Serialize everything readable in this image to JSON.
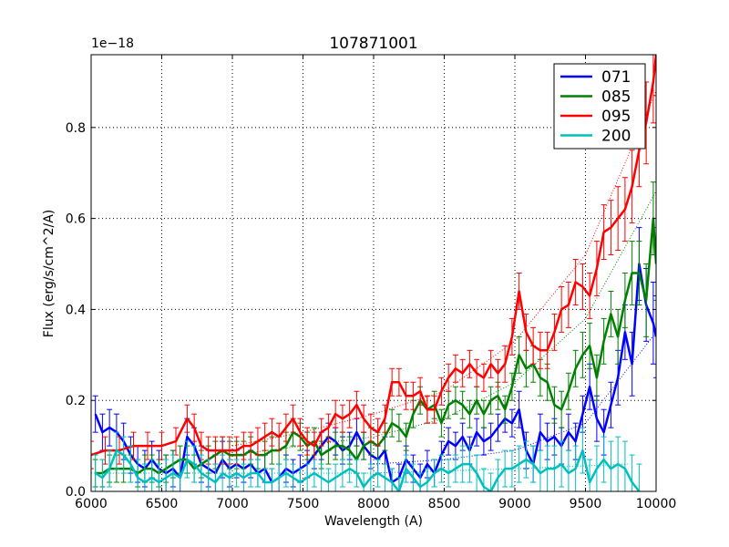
{
  "chart_data": {
    "type": "line",
    "title": "107871001",
    "xlabel": "Wavelength (A)",
    "ylabel": "Flux (erg/s/cm^2/A)",
    "y_offset_label": "1e−18",
    "xlim": [
      6000,
      10000
    ],
    "ylim": [
      0,
      0.96
    ],
    "x_ticks": [
      6000,
      6500,
      7000,
      7500,
      8000,
      8500,
      9000,
      9500,
      10000
    ],
    "x_tick_labels": [
      "6000",
      "6500",
      "7000",
      "7500",
      "8000",
      "8500",
      "9000",
      "9500",
      "10000"
    ],
    "y_ticks": [
      0.0,
      0.2,
      0.4,
      0.6,
      0.8
    ],
    "y_tick_labels": [
      "0.0",
      "0.2",
      "0.4",
      "0.6",
      "0.8"
    ],
    "grid": true,
    "legend_position": "top-right",
    "series": [
      {
        "name": "071",
        "color": "#0000ff",
        "x": [
          6030,
          6080,
          6130,
          6180,
          6230,
          6280,
          6330,
          6380,
          6430,
          6480,
          6530,
          6580,
          6630,
          6680,
          6730,
          6780,
          6830,
          6880,
          6930,
          6980,
          7030,
          7080,
          7130,
          7180,
          7230,
          7280,
          7330,
          7380,
          7430,
          7480,
          7530,
          7580,
          7630,
          7680,
          7730,
          7780,
          7830,
          7880,
          7930,
          7980,
          8030,
          8080,
          8130,
          8180,
          8230,
          8280,
          8330,
          8380,
          8430,
          8480,
          8530,
          8580,
          8630,
          8680,
          8730,
          8780,
          8830,
          8880,
          8930,
          8980,
          9030,
          9080,
          9130,
          9180,
          9230,
          9280,
          9330,
          9380,
          9430,
          9480,
          9530,
          9580,
          9630,
          9680,
          9730,
          9780,
          9830,
          9880,
          9930,
          9980,
          10000
        ],
        "values": [
          0.17,
          0.13,
          0.14,
          0.13,
          0.11,
          0.08,
          0.06,
          0.05,
          0.07,
          0.05,
          0.04,
          0.05,
          0.03,
          0.12,
          0.1,
          0.06,
          0.05,
          0.04,
          0.07,
          0.05,
          0.06,
          0.05,
          0.06,
          0.04,
          0.05,
          0.02,
          0.03,
          0.05,
          0.04,
          0.05,
          0.06,
          0.08,
          0.1,
          0.12,
          0.11,
          0.09,
          0.1,
          0.13,
          0.1,
          0.08,
          0.07,
          0.09,
          0.02,
          0.03,
          0.07,
          0.05,
          0.03,
          0.06,
          0.04,
          0.08,
          0.11,
          0.1,
          0.12,
          0.09,
          0.13,
          0.11,
          0.12,
          0.14,
          0.16,
          0.15,
          0.18,
          0.09,
          0.06,
          0.13,
          0.11,
          0.12,
          0.1,
          0.13,
          0.11,
          0.17,
          0.23,
          0.16,
          0.13,
          0.19,
          0.25,
          0.35,
          0.28,
          0.5,
          0.41,
          0.37,
          0.34
        ],
        "errors": [
          0.04,
          0.04,
          0.04,
          0.04,
          0.04,
          0.04,
          0.04,
          0.04,
          0.04,
          0.04,
          0.04,
          0.04,
          0.04,
          0.04,
          0.04,
          0.04,
          0.04,
          0.04,
          0.04,
          0.04,
          0.03,
          0.03,
          0.03,
          0.03,
          0.03,
          0.03,
          0.03,
          0.03,
          0.03,
          0.03,
          0.03,
          0.03,
          0.03,
          0.03,
          0.03,
          0.03,
          0.03,
          0.03,
          0.03,
          0.03,
          0.03,
          0.03,
          0.03,
          0.03,
          0.03,
          0.03,
          0.03,
          0.03,
          0.03,
          0.03,
          0.03,
          0.03,
          0.03,
          0.03,
          0.03,
          0.03,
          0.03,
          0.03,
          0.03,
          0.03,
          0.04,
          0.04,
          0.04,
          0.04,
          0.04,
          0.04,
          0.04,
          0.04,
          0.04,
          0.04,
          0.05,
          0.05,
          0.05,
          0.05,
          0.06,
          0.06,
          0.07,
          0.08,
          0.08,
          0.09,
          0.09
        ]
      },
      {
        "name": "085",
        "color": "#008000",
        "x": [
          6030,
          6080,
          6130,
          6180,
          6230,
          6280,
          6330,
          6380,
          6430,
          6480,
          6530,
          6580,
          6630,
          6680,
          6730,
          6780,
          6830,
          6880,
          6930,
          6980,
          7030,
          7080,
          7130,
          7180,
          7230,
          7280,
          7330,
          7380,
          7430,
          7480,
          7530,
          7580,
          7630,
          7680,
          7730,
          7780,
          7830,
          7880,
          7930,
          7980,
          8030,
          8080,
          8130,
          8180,
          8230,
          8280,
          8330,
          8380,
          8430,
          8480,
          8530,
          8580,
          8630,
          8680,
          8730,
          8780,
          8830,
          8880,
          8930,
          8980,
          9030,
          9080,
          9130,
          9180,
          9230,
          9280,
          9330,
          9380,
          9430,
          9480,
          9530,
          9580,
          9630,
          9680,
          9730,
          9780,
          9830,
          9880,
          9930,
          9980,
          10000
        ],
        "values": [
          0.04,
          0.04,
          0.05,
          0.05,
          0.05,
          0.05,
          0.04,
          0.05,
          0.05,
          0.04,
          0.05,
          0.06,
          0.07,
          0.07,
          0.05,
          0.06,
          0.07,
          0.08,
          0.09,
          0.08,
          0.08,
          0.08,
          0.09,
          0.08,
          0.08,
          0.09,
          0.09,
          0.1,
          0.13,
          0.12,
          0.1,
          0.11,
          0.08,
          0.09,
          0.1,
          0.1,
          0.09,
          0.07,
          0.1,
          0.11,
          0.1,
          0.12,
          0.15,
          0.14,
          0.12,
          0.17,
          0.2,
          0.18,
          0.19,
          0.15,
          0.19,
          0.2,
          0.19,
          0.17,
          0.2,
          0.17,
          0.2,
          0.21,
          0.18,
          0.23,
          0.3,
          0.27,
          0.28,
          0.25,
          0.24,
          0.19,
          0.18,
          0.22,
          0.27,
          0.3,
          0.32,
          0.25,
          0.33,
          0.39,
          0.34,
          0.42,
          0.48,
          0.48,
          0.42,
          0.6,
          0.5
        ],
        "errors": [
          0.03,
          0.03,
          0.03,
          0.03,
          0.03,
          0.03,
          0.03,
          0.03,
          0.03,
          0.03,
          0.03,
          0.03,
          0.03,
          0.03,
          0.03,
          0.03,
          0.03,
          0.03,
          0.03,
          0.03,
          0.03,
          0.03,
          0.03,
          0.03,
          0.03,
          0.03,
          0.03,
          0.03,
          0.03,
          0.03,
          0.03,
          0.03,
          0.03,
          0.03,
          0.03,
          0.03,
          0.03,
          0.03,
          0.03,
          0.03,
          0.03,
          0.03,
          0.03,
          0.03,
          0.03,
          0.03,
          0.03,
          0.03,
          0.03,
          0.03,
          0.03,
          0.03,
          0.03,
          0.03,
          0.03,
          0.03,
          0.03,
          0.03,
          0.03,
          0.03,
          0.04,
          0.04,
          0.04,
          0.04,
          0.04,
          0.04,
          0.04,
          0.04,
          0.04,
          0.05,
          0.05,
          0.05,
          0.05,
          0.05,
          0.06,
          0.06,
          0.07,
          0.07,
          0.08,
          0.08,
          0.08
        ]
      },
      {
        "name": "095",
        "color": "#ff0000",
        "x": [
          6000,
          6100,
          6200,
          6300,
          6400,
          6500,
          6600,
          6680,
          6730,
          6780,
          6830,
          6880,
          6930,
          6980,
          7030,
          7080,
          7130,
          7180,
          7230,
          7280,
          7330,
          7380,
          7430,
          7480,
          7530,
          7580,
          7630,
          7680,
          7730,
          7780,
          7830,
          7880,
          7930,
          7980,
          8030,
          8080,
          8130,
          8180,
          8230,
          8280,
          8330,
          8380,
          8430,
          8480,
          8530,
          8580,
          8630,
          8680,
          8730,
          8780,
          8830,
          8880,
          8930,
          8980,
          9030,
          9080,
          9130,
          9180,
          9230,
          9280,
          9330,
          9380,
          9430,
          9480,
          9530,
          9580,
          9630,
          9680,
          9730,
          9780,
          9830,
          9880,
          9930,
          9980,
          10000
        ],
        "values": [
          0.08,
          0.09,
          0.09,
          0.1,
          0.1,
          0.1,
          0.11,
          0.16,
          0.14,
          0.1,
          0.09,
          0.09,
          0.09,
          0.09,
          0.09,
          0.1,
          0.1,
          0.11,
          0.12,
          0.13,
          0.12,
          0.14,
          0.16,
          0.13,
          0.11,
          0.1,
          0.13,
          0.14,
          0.17,
          0.16,
          0.17,
          0.19,
          0.16,
          0.14,
          0.13,
          0.16,
          0.24,
          0.24,
          0.21,
          0.21,
          0.22,
          0.18,
          0.18,
          0.22,
          0.25,
          0.27,
          0.26,
          0.28,
          0.26,
          0.25,
          0.28,
          0.26,
          0.28,
          0.34,
          0.44,
          0.35,
          0.32,
          0.31,
          0.31,
          0.35,
          0.4,
          0.41,
          0.46,
          0.45,
          0.43,
          0.49,
          0.57,
          0.58,
          0.6,
          0.62,
          0.67,
          0.75,
          0.81,
          0.9,
          0.96
        ],
        "errors": [
          0.03,
          0.03,
          0.03,
          0.03,
          0.03,
          0.03,
          0.03,
          0.03,
          0.03,
          0.03,
          0.03,
          0.03,
          0.03,
          0.03,
          0.03,
          0.03,
          0.03,
          0.03,
          0.03,
          0.03,
          0.03,
          0.03,
          0.03,
          0.03,
          0.03,
          0.03,
          0.03,
          0.03,
          0.03,
          0.03,
          0.03,
          0.03,
          0.03,
          0.03,
          0.03,
          0.03,
          0.03,
          0.03,
          0.03,
          0.03,
          0.03,
          0.03,
          0.03,
          0.03,
          0.03,
          0.03,
          0.03,
          0.03,
          0.03,
          0.03,
          0.03,
          0.03,
          0.04,
          0.04,
          0.04,
          0.04,
          0.04,
          0.04,
          0.04,
          0.04,
          0.05,
          0.05,
          0.05,
          0.05,
          0.05,
          0.06,
          0.06,
          0.06,
          0.07,
          0.07,
          0.08,
          0.08,
          0.09,
          0.09,
          0.09
        ]
      },
      {
        "name": "200",
        "color": "#00bfbf",
        "x": [
          6030,
          6080,
          6130,
          6180,
          6230,
          6280,
          6330,
          6380,
          6430,
          6480,
          6530,
          6580,
          6630,
          6680,
          6730,
          6780,
          6830,
          6880,
          6930,
          6980,
          7030,
          7080,
          7130,
          7180,
          7230,
          7280,
          7330,
          7380,
          7430,
          7480,
          7530,
          7580,
          7630,
          7680,
          7730,
          7780,
          7830,
          7880,
          7930,
          7980,
          8030,
          8080,
          8130,
          8180,
          8230,
          8280,
          8330,
          8380,
          8430,
          8480,
          8530,
          8580,
          8630,
          8680,
          8730,
          8780,
          8830,
          8880,
          8930,
          8980,
          9030,
          9080,
          9130,
          9180,
          9230,
          9280,
          9330,
          9380,
          9430,
          9480,
          9530,
          9580,
          9630,
          9680,
          9730,
          9780,
          9830,
          9880
        ],
        "values": [
          0.04,
          0.03,
          0.05,
          0.09,
          0.08,
          0.06,
          0.03,
          0.02,
          0.03,
          0.02,
          0.03,
          0.04,
          0.03,
          0.07,
          0.06,
          0.04,
          0.03,
          0.02,
          0.04,
          0.03,
          0.04,
          0.03,
          0.04,
          0.04,
          0.02,
          0.02,
          0.03,
          0.04,
          0.03,
          0.02,
          0.03,
          0.04,
          0.03,
          0.02,
          0.03,
          0.04,
          0.05,
          0.04,
          0.01,
          0.03,
          0.04,
          0.03,
          0.02,
          0.0,
          0.05,
          0.03,
          0.01,
          0.02,
          0.04,
          0.05,
          0.04,
          0.05,
          0.06,
          0.06,
          0.04,
          0.01,
          0.0,
          0.03,
          0.05,
          0.05,
          0.06,
          0.07,
          0.06,
          0.04,
          0.05,
          0.05,
          0.06,
          0.04,
          0.05,
          0.09,
          0.02,
          0.05,
          0.07,
          0.05,
          0.06,
          0.05,
          0.02,
          0.0
        ],
        "errors": [
          0.04,
          0.04,
          0.04,
          0.04,
          0.04,
          0.04,
          0.04,
          0.04,
          0.04,
          0.04,
          0.04,
          0.04,
          0.04,
          0.04,
          0.04,
          0.04,
          0.04,
          0.04,
          0.04,
          0.04,
          0.03,
          0.03,
          0.03,
          0.03,
          0.03,
          0.03,
          0.03,
          0.03,
          0.03,
          0.03,
          0.03,
          0.03,
          0.03,
          0.03,
          0.03,
          0.03,
          0.03,
          0.03,
          0.03,
          0.03,
          0.03,
          0.03,
          0.03,
          0.03,
          0.03,
          0.03,
          0.03,
          0.03,
          0.03,
          0.03,
          0.03,
          0.03,
          0.04,
          0.04,
          0.04,
          0.04,
          0.04,
          0.04,
          0.04,
          0.04,
          0.04,
          0.04,
          0.04,
          0.05,
          0.05,
          0.05,
          0.05,
          0.05,
          0.05,
          0.05,
          0.05,
          0.05,
          0.05,
          0.06,
          0.06,
          0.06,
          0.06,
          0.06
        ]
      }
    ],
    "fits": [
      {
        "series": "071",
        "color": "#0000ff",
        "x": [
          8000,
          8500,
          9000,
          9500,
          10000
        ],
        "values": [
          0.06,
          0.07,
          0.09,
          0.15,
          0.35
        ]
      },
      {
        "series": "085",
        "color": "#008000",
        "x": [
          7000,
          7500,
          8000,
          8500,
          9000,
          9500,
          10000
        ],
        "values": [
          0.08,
          0.1,
          0.12,
          0.16,
          0.24,
          0.38,
          0.66
        ]
      },
      {
        "series": "095",
        "color": "#ff0000",
        "x": [
          7000,
          7500,
          8000,
          8500,
          9000,
          9500,
          10000
        ],
        "values": [
          0.1,
          0.13,
          0.17,
          0.22,
          0.33,
          0.52,
          0.88
        ]
      },
      {
        "series": "200",
        "color": "#00bfbf",
        "x": [
          6000,
          7000,
          8000,
          9000,
          9800
        ],
        "values": [
          0.04,
          0.04,
          0.04,
          0.05,
          0.06
        ]
      }
    ]
  }
}
